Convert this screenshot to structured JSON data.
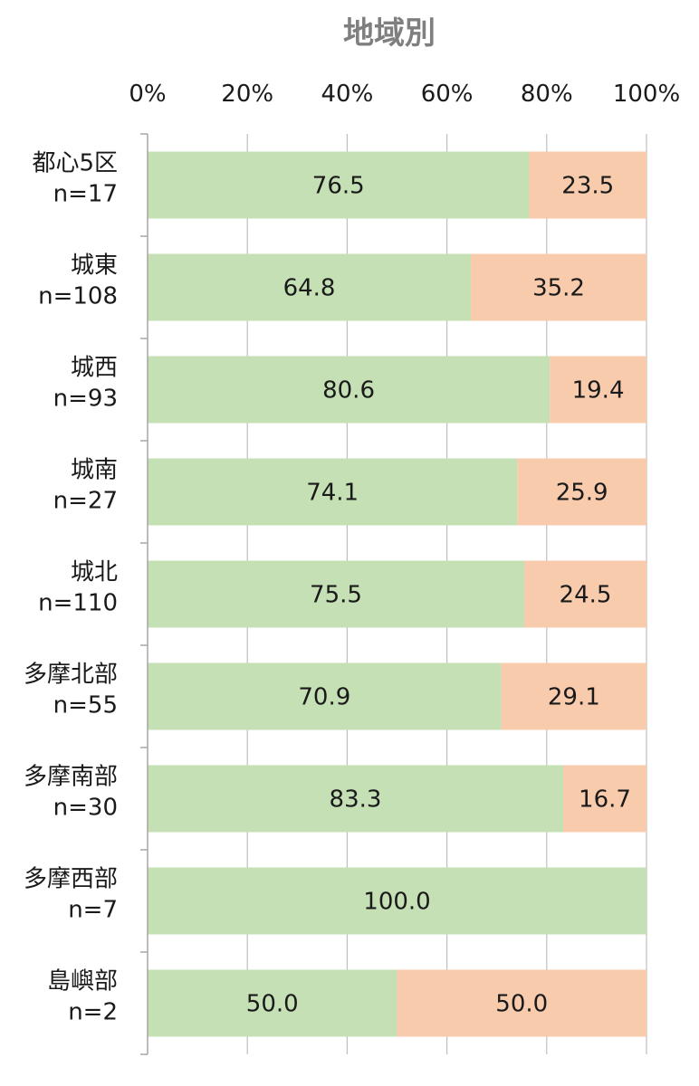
{
  "chart_data": {
    "type": "bar",
    "orientation": "horizontal",
    "stacked": true,
    "title": "地域別",
    "xlim": [
      0,
      100
    ],
    "x_ticks": [
      "0%",
      "20%",
      "40%",
      "60%",
      "80%",
      "100%"
    ],
    "grid": true,
    "categories": [
      [
        "都心5区",
        "n=17"
      ],
      [
        "城東",
        "n=108"
      ],
      [
        "城西",
        "n=93"
      ],
      [
        "城南",
        "n=27"
      ],
      [
        "城北",
        "n=110"
      ],
      [
        "多摩北部",
        "n=55"
      ],
      [
        "多摩南部",
        "n=30"
      ],
      [
        "多摩西部",
        "n=7"
      ],
      [
        "島嶼部",
        "n=2"
      ]
    ],
    "series": [
      {
        "color": "#c5e0b4",
        "values": [
          76.5,
          64.8,
          80.6,
          74.1,
          75.5,
          70.9,
          83.3,
          100.0,
          50.0
        ]
      },
      {
        "color": "#f8cbad",
        "values": [
          23.5,
          35.2,
          19.4,
          25.9,
          24.5,
          29.1,
          16.7,
          0,
          50.0
        ]
      }
    ]
  }
}
